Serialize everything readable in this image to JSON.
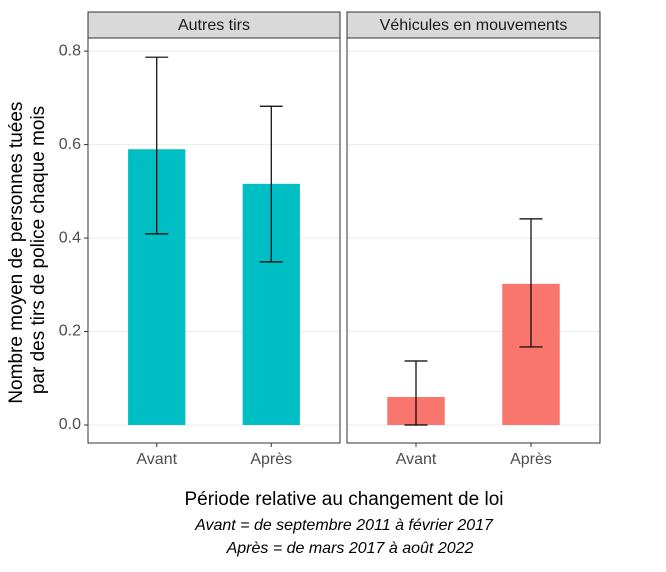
{
  "y_label": [
    "Nombre moyen de personnes tuées",
    "par des tirs de police chaque mois"
  ],
  "x_label": "Période relative au changement de loi",
  "caption": [
    "Avant = de septembre 2011 à février 2017",
    "Après = de mars 2017 à août 2022"
  ],
  "chart_data": [
    {
      "type": "bar",
      "title": "Autres tirs",
      "categories": [
        "Avant",
        "Après"
      ],
      "values": [
        0.59,
        0.516
      ],
      "ci": [
        [
          0.409,
          0.787
        ],
        [
          0.349,
          0.682
        ]
      ],
      "color": "#00bfc4",
      "ylim": [
        -0.0385,
        0.828
      ],
      "yticks": [
        {
          "value": 0,
          "label": "0.0"
        },
        0.2,
        0.4,
        0.6,
        0.8
      ],
      "grid": true
    },
    {
      "type": "bar",
      "title": "Véhicules en mouvements",
      "categories": [
        "Avant",
        "Après"
      ],
      "values": [
        0.06,
        0.302
      ],
      "ci": [
        [
          0,
          0.137
        ],
        [
          0.167,
          0.441
        ]
      ],
      "color": "#f8766d",
      "ylim": [
        -0.0385,
        0.828
      ],
      "yticks": [
        {
          "value": 0,
          "label": "0.0"
        },
        0.2,
        0.4,
        0.6,
        0.8
      ],
      "grid": true
    }
  ]
}
